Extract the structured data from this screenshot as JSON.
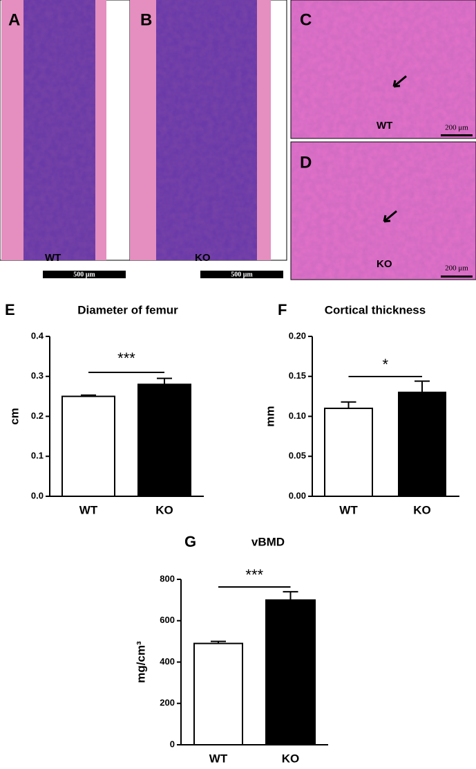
{
  "panels": {
    "A": {
      "letter": "A",
      "group": "WT",
      "scale": "500 μm"
    },
    "B": {
      "letter": "B",
      "group": "KO",
      "scale": "500 μm"
    },
    "C": {
      "letter": "C",
      "group": "WT",
      "scale": "200 μm"
    },
    "D": {
      "letter": "D",
      "group": "KO",
      "scale": "200 μm"
    }
  },
  "chart_data": [
    {
      "type": "bar",
      "panel": "E",
      "title": "Diameter of femur",
      "y_label": "cm",
      "categories": [
        "WT",
        "KO"
      ],
      "values": [
        0.25,
        0.28
      ],
      "errors": [
        0.003,
        0.015
      ],
      "colors": [
        "#ffffff",
        "#000000"
      ],
      "ylim": [
        0,
        0.4
      ],
      "yticks": [
        {
          "value": 0,
          "label": "0.0"
        },
        0.1,
        0.2,
        0.3,
        0.4
      ],
      "annotation": "***"
    },
    {
      "type": "bar",
      "panel": "F",
      "title": "Cortical thickness",
      "y_label": "mm",
      "categories": [
        "WT",
        "KO"
      ],
      "values": [
        0.11,
        0.13
      ],
      "errors": [
        0.008,
        0.014
      ],
      "colors": [
        "#ffffff",
        "#000000"
      ],
      "ylim": [
        0,
        0.2
      ],
      "yticks": [
        {
          "value": 0,
          "label": "0.00"
        },
        0.05,
        {
          "value": 0.1,
          "label": "0.10"
        },
        0.15,
        {
          "value": 0.2,
          "label": "0.20"
        }
      ],
      "annotation": "*"
    },
    {
      "type": "bar",
      "panel": "G",
      "title": "vBMD",
      "y_label": "mg/cm³",
      "categories": [
        "WT",
        "KO"
      ],
      "values": [
        490,
        700
      ],
      "errors": [
        10,
        40
      ],
      "colors": [
        "#ffffff",
        "#000000"
      ],
      "ylim": [
        0,
        800
      ],
      "yticks": [
        0,
        200,
        400,
        600,
        800
      ],
      "annotation": "***"
    }
  ]
}
